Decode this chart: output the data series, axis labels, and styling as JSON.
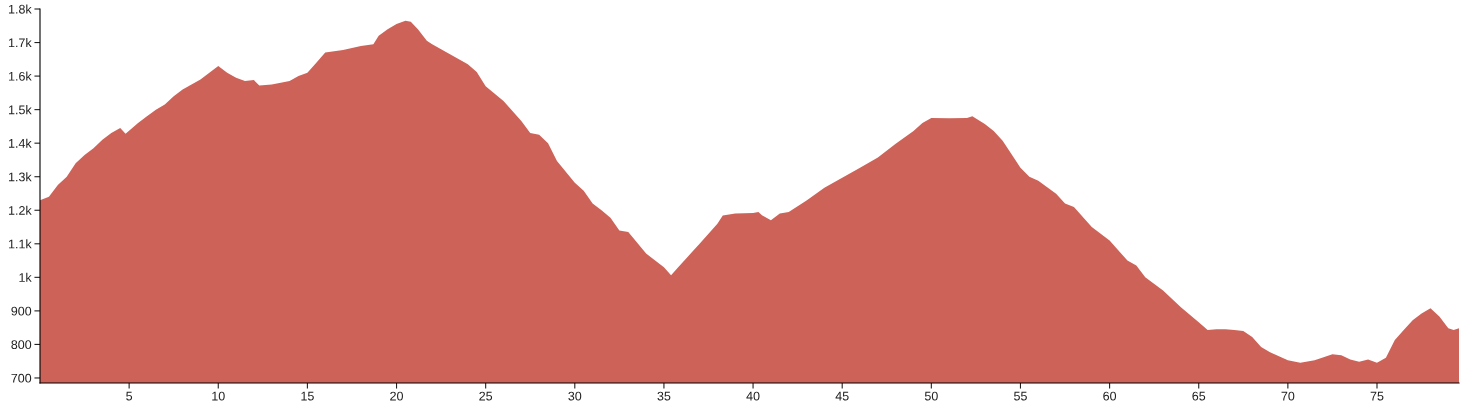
{
  "chart_data": {
    "type": "area",
    "xlim": [
      0,
      79.6
    ],
    "ylim": [
      685,
      1800
    ],
    "xticks": [
      5,
      10,
      15,
      20,
      25,
      30,
      35,
      40,
      45,
      50,
      55,
      60,
      65,
      70,
      75
    ],
    "yticks": [
      700,
      800,
      900,
      {
        "value": 1000,
        "label": "1k"
      },
      {
        "value": 1100,
        "label": "1.1k"
      },
      {
        "value": 1200,
        "label": "1.2k"
      },
      {
        "value": 1300,
        "label": "1.3k"
      },
      {
        "value": 1400,
        "label": "1.4k"
      },
      {
        "value": 1500,
        "label": "1.5k"
      },
      {
        "value": 1600,
        "label": "1.6k"
      },
      {
        "value": 1700,
        "label": "1.7k"
      },
      {
        "value": 1800,
        "label": "1.8k"
      }
    ],
    "grid": false,
    "legend": false,
    "series": [
      {
        "color": "#cd6358",
        "x": [
          0,
          0.5,
          1,
          1.5,
          2,
          2.5,
          3,
          3.5,
          4,
          4.5,
          4.8,
          5.5,
          6,
          6.5,
          7,
          7.5,
          8,
          8.5,
          9,
          9.5,
          10,
          10.5,
          11,
          11.5,
          12,
          12.3,
          13,
          14,
          14.5,
          15,
          15.5,
          16,
          17,
          18,
          18.7,
          19,
          19.5,
          20,
          20.5,
          20.8,
          21.2,
          21.7,
          22,
          22.5,
          23,
          24,
          24.5,
          25,
          26,
          27,
          27.5,
          28,
          28.5,
          29,
          30,
          30.5,
          31,
          31.5,
          32,
          32.5,
          33,
          34,
          35,
          35.4,
          35.8,
          36.5,
          37,
          38,
          38.3,
          39,
          40,
          40.3,
          40.5,
          41,
          41.5,
          42,
          43,
          44,
          45,
          46,
          47,
          48,
          49,
          49.5,
          50,
          51,
          52,
          52.3,
          53,
          53.5,
          54,
          55,
          55.5,
          56,
          57,
          57.5,
          58,
          59,
          60,
          61,
          61.5,
          62,
          63,
          64,
          65,
          65.5,
          66,
          66.5,
          67,
          67.5,
          68,
          68.5,
          69,
          70,
          70.7,
          71.5,
          72.5,
          73,
          73.5,
          74,
          74.5,
          75,
          75.5,
          76,
          76.5,
          77,
          77.5,
          78,
          78.5,
          79,
          79.3,
          79.6
        ],
        "values": [
          1230,
          1240,
          1275,
          1300,
          1340,
          1365,
          1385,
          1410,
          1430,
          1445,
          1428,
          1460,
          1480,
          1500,
          1515,
          1540,
          1560,
          1575,
          1590,
          1610,
          1630,
          1610,
          1595,
          1585,
          1588,
          1572,
          1575,
          1585,
          1600,
          1610,
          1640,
          1670,
          1678,
          1690,
          1695,
          1720,
          1740,
          1755,
          1765,
          1762,
          1740,
          1705,
          1695,
          1680,
          1665,
          1635,
          1612,
          1570,
          1526,
          1466,
          1430,
          1425,
          1400,
          1347,
          1282,
          1258,
          1220,
          1200,
          1178,
          1140,
          1135,
          1071,
          1030,
          1006,
          1030,
          1071,
          1100,
          1160,
          1184,
          1190,
          1192,
          1195,
          1185,
          1170,
          1190,
          1195,
          1229,
          1267,
          1297,
          1327,
          1357,
          1398,
          1436,
          1460,
          1475,
          1474,
          1475,
          1480,
          1457,
          1436,
          1407,
          1327,
          1300,
          1288,
          1249,
          1220,
          1210,
          1150,
          1110,
          1050,
          1035,
          1000,
          961,
          911,
          866,
          843,
          845,
          845,
          843,
          840,
          822,
          792,
          777,
          753,
          745,
          753,
          771,
          768,
          755,
          748,
          755,
          745,
          760,
          813,
          843,
          872,
          892,
          908,
          883,
          848,
          843,
          848
        ]
      }
    ]
  }
}
